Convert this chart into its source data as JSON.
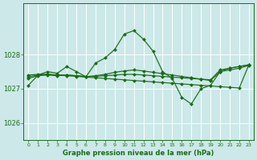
{
  "title": "Graphe pression niveau de la mer (hPa)",
  "bg_color": "#cce8e8",
  "grid_color": "#ffffff",
  "line_color": "#1a6b1a",
  "marker_color": "#1a6b1a",
  "xlim": [
    -0.5,
    23.5
  ],
  "ylim": [
    1025.5,
    1029.5
  ],
  "yticks": [
    1026,
    1027,
    1028
  ],
  "xticks": [
    0,
    1,
    2,
    3,
    4,
    5,
    6,
    7,
    8,
    9,
    10,
    11,
    12,
    13,
    14,
    15,
    16,
    17,
    18,
    19,
    20,
    21,
    22,
    23
  ],
  "series": [
    {
      "x": [
        0,
        1,
        2,
        3,
        4,
        5,
        6,
        7,
        8,
        9,
        10,
        11,
        12,
        13,
        14,
        15,
        16,
        17,
        18,
        19,
        20,
        21,
        22,
        23
      ],
      "y": [
        1027.1,
        1027.4,
        1027.5,
        1027.45,
        1027.65,
        1027.5,
        1027.35,
        1027.75,
        1027.9,
        1028.15,
        1028.6,
        1028.7,
        1028.45,
        1028.1,
        1027.5,
        1027.3,
        1026.75,
        1026.55,
        1027.0,
        1027.1,
        1027.5,
        1027.6,
        1027.65,
        1027.7
      ]
    },
    {
      "x": [
        0,
        1,
        2,
        3,
        4,
        5,
        6,
        7,
        8,
        9,
        10,
        11,
        12,
        13,
        14,
        15,
        16,
        17,
        18,
        19,
        20,
        21,
        22,
        23
      ],
      "y": [
        1027.4,
        1027.42,
        1027.42,
        1027.4,
        1027.38,
        1027.36,
        1027.34,
        1027.32,
        1027.3,
        1027.28,
        1027.26,
        1027.24,
        1027.22,
        1027.2,
        1027.18,
        1027.16,
        1027.14,
        1027.12,
        1027.1,
        1027.08,
        1027.06,
        1027.04,
        1027.02,
        1027.7
      ]
    },
    {
      "x": [
        0,
        1,
        2,
        3,
        4,
        5,
        6,
        7,
        8,
        9,
        10,
        11,
        12,
        13,
        14,
        15,
        16,
        17,
        18,
        19,
        20,
        21,
        22,
        23
      ],
      "y": [
        1027.35,
        1027.4,
        1027.42,
        1027.4,
        1027.4,
        1027.38,
        1027.36,
        1027.36,
        1027.38,
        1027.4,
        1027.42,
        1027.42,
        1027.4,
        1027.38,
        1027.36,
        1027.34,
        1027.32,
        1027.3,
        1027.28,
        1027.26,
        1027.55,
        1027.6,
        1027.65,
        1027.7
      ]
    },
    {
      "x": [
        0,
        1,
        2,
        3,
        4,
        5,
        6,
        7,
        8,
        9,
        10,
        11,
        12,
        13,
        14,
        15,
        16,
        17,
        18,
        19,
        20,
        21,
        22,
        23
      ],
      "y": [
        1027.3,
        1027.38,
        1027.4,
        1027.38,
        1027.4,
        1027.38,
        1027.35,
        1027.38,
        1027.42,
        1027.48,
        1027.52,
        1027.55,
        1027.52,
        1027.48,
        1027.44,
        1027.4,
        1027.36,
        1027.32,
        1027.28,
        1027.24,
        1027.5,
        1027.55,
        1027.6,
        1027.68
      ]
    }
  ]
}
